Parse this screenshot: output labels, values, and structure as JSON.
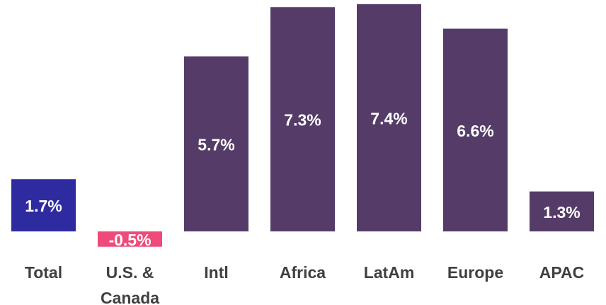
{
  "colors": {
    "total": "#2e2aa0",
    "positive": "#553c68",
    "negative": "#ef4a7a",
    "label_on_bar": "#ffffff",
    "category_text": "#404040"
  },
  "chart_data": {
    "type": "bar",
    "title": "",
    "xlabel": "",
    "ylabel": "",
    "categories": [
      "Total",
      "U.S. & Canada",
      "Intl",
      "Africa",
      "LatAm",
      "Europe",
      "APAC"
    ],
    "category_lines": [
      [
        "Total"
      ],
      [
        "U.S. &",
        "Canada"
      ],
      [
        "Intl"
      ],
      [
        "Africa"
      ],
      [
        "LatAm"
      ],
      [
        "Europe"
      ],
      [
        "APAC"
      ]
    ],
    "values": [
      1.7,
      -0.5,
      5.7,
      7.3,
      7.4,
      6.6,
      1.3
    ],
    "value_labels": [
      "1.7%",
      "-0.5%",
      "5.7%",
      "7.3%",
      "7.4%",
      "6.6%",
      "1.3%"
    ],
    "bar_colors": [
      "#2e2aa0",
      "#ef4a7a",
      "#553c68",
      "#553c68",
      "#553c68",
      "#553c68",
      "#553c68"
    ],
    "unit": "%",
    "ylim": [
      -0.5,
      7.4
    ],
    "grid": false,
    "legend": "none"
  }
}
